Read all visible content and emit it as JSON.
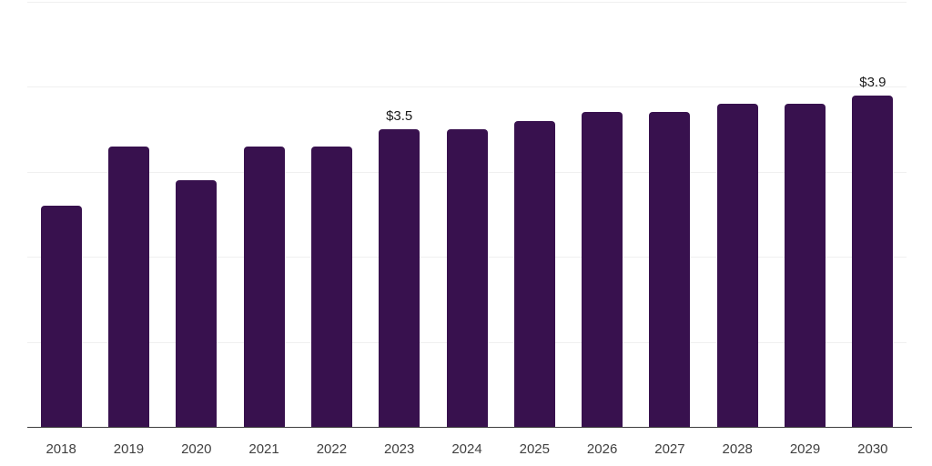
{
  "chart_data": {
    "type": "bar",
    "categories": [
      "2018",
      "2019",
      "2020",
      "2021",
      "2022",
      "2023",
      "2024",
      "2025",
      "2026",
      "2027",
      "2028",
      "2029",
      "2030"
    ],
    "values": [
      2.6,
      3.3,
      2.9,
      3.3,
      3.3,
      3.5,
      3.5,
      3.6,
      3.7,
      3.7,
      3.8,
      3.8,
      3.9
    ],
    "point_labels": [
      "",
      "",
      "",
      "",
      "",
      "$3.5",
      "",
      "",
      "",
      "",
      "",
      "",
      "$3.9"
    ],
    "xlabel": "",
    "ylabel": "",
    "ylim": [
      0,
      5
    ],
    "y_gridlines": [
      1,
      2,
      3,
      4,
      5
    ],
    "grid": "horizontal-only",
    "legend": "none",
    "y_axis_labels_visible": false,
    "colors": {
      "bar": "#38114e",
      "grid_line": "#f0f0f0",
      "axis_line": "#3d3d3d",
      "tick_label": "#404040",
      "data_label": "#1a1a1a",
      "background": "#ffffff"
    }
  }
}
